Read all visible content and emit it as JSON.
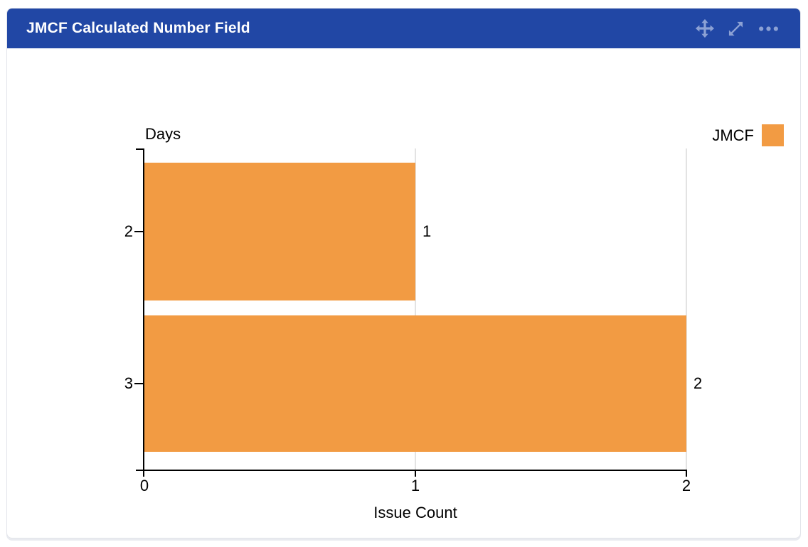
{
  "widget": {
    "title": "JMCF Calculated Number Field"
  },
  "chart_data": {
    "type": "bar",
    "orientation": "horizontal",
    "title": "",
    "ylabel": "Days",
    "xlabel": "Issue Count",
    "categories": [
      "2",
      "3"
    ],
    "series": [
      {
        "name": "JMCF",
        "values": [
          1,
          2
        ]
      }
    ],
    "bar_value_labels": [
      "1",
      "2"
    ],
    "xlim": [
      0,
      2
    ],
    "x_ticks": [
      "0",
      "1",
      "2"
    ],
    "grid": "vertical gridlines at x tick positions",
    "legend": {
      "position": "top-right",
      "entries": [
        {
          "label": "JMCF",
          "color": "#f29b43"
        }
      ]
    },
    "colors": {
      "bar": "#f29b43",
      "axis": "#000000",
      "gridline": "#e3e3e3"
    }
  },
  "theme": {
    "header_bg": "#2147a5",
    "header_text": "#ffffff",
    "header_icon": "#8ca1d4",
    "panel_bg": "#ffffff",
    "panel_border": "#e3e5ea"
  }
}
